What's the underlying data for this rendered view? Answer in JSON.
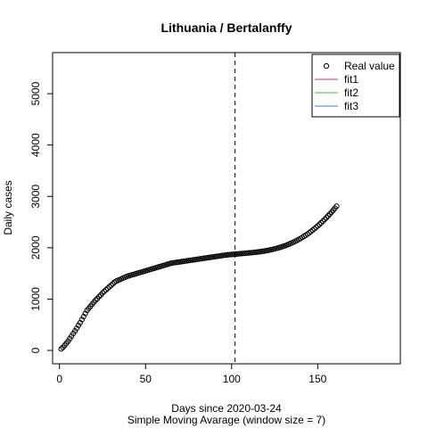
{
  "chart_data": {
    "type": "scatter",
    "title": "Lithuania / Bertalanffy",
    "xlabel": "Days since 2020-03-24",
    "subtitle": "Simple Moving Avarage (window size = 7)",
    "ylabel": "Daily cases",
    "xlim": [
      -4,
      198
    ],
    "ylim": [
      -260,
      5800
    ],
    "xticks": [
      0,
      50,
      100,
      150
    ],
    "yticks": [
      0,
      1000,
      2000,
      3000,
      4000,
      5000
    ],
    "vline_x": 102,
    "grid": false,
    "legend_position": "top-right",
    "legend": [
      {
        "label": "Real value",
        "symbol": "circle",
        "color": "#000000"
      },
      {
        "label": "fit1",
        "symbol": "line",
        "color": "#a0457c"
      },
      {
        "label": "fit2",
        "symbol": "line",
        "color": "#4db34d"
      },
      {
        "label": "fit3",
        "symbol": "line",
        "color": "#3a7ac0"
      }
    ],
    "series": [
      {
        "symbol": "circle",
        "x": [
          1,
          2,
          3,
          4,
          5,
          6,
          7,
          8,
          9,
          10,
          11,
          12,
          13,
          14,
          15,
          16,
          17,
          18,
          19,
          20,
          21,
          22,
          23,
          24,
          25,
          26,
          27,
          28,
          29,
          30,
          31,
          32,
          33,
          34,
          35,
          36,
          37,
          38,
          39,
          40,
          41,
          42,
          43,
          44,
          45,
          46,
          47,
          48,
          49,
          50,
          51,
          52,
          53,
          54,
          55,
          56,
          57,
          58,
          59,
          60,
          61,
          62,
          63,
          64,
          65,
          66,
          67,
          68,
          69,
          70,
          71,
          72,
          73,
          74,
          75,
          76,
          77,
          78,
          79,
          80,
          81,
          82,
          83,
          84,
          85,
          86,
          87,
          88,
          89,
          90,
          91,
          92,
          93,
          94,
          95,
          96,
          97,
          98,
          99,
          100,
          101,
          102,
          103,
          104,
          105,
          106,
          107,
          108,
          109,
          110,
          111,
          112,
          113,
          114,
          115,
          116,
          117,
          118,
          119,
          120,
          121,
          122,
          123,
          124,
          125,
          126,
          127,
          128,
          129,
          130,
          131,
          132,
          133,
          134,
          135,
          136,
          137,
          138,
          139,
          140,
          141,
          142,
          143,
          144,
          145,
          146,
          147,
          148,
          149,
          150,
          151,
          152,
          153,
          154,
          155,
          156,
          157,
          158,
          159,
          160,
          161
        ],
        "y": [
          30,
          60,
          100,
          140,
          180,
          230,
          280,
          330,
          380,
          430,
          490,
          540,
          600,
          660,
          720,
          780,
          820,
          860,
          900,
          940,
          980,
          1010,
          1050,
          1080,
          1120,
          1150,
          1180,
          1210,
          1240,
          1270,
          1300,
          1330,
          1350,
          1365,
          1380,
          1395,
          1410,
          1425,
          1440,
          1450,
          1460,
          1470,
          1480,
          1490,
          1500,
          1510,
          1520,
          1530,
          1540,
          1550,
          1560,
          1570,
          1580,
          1590,
          1600,
          1610,
          1620,
          1630,
          1640,
          1650,
          1660,
          1670,
          1680,
          1690,
          1700,
          1705,
          1710,
          1715,
          1720,
          1725,
          1730,
          1735,
          1740,
          1745,
          1750,
          1755,
          1760,
          1765,
          1770,
          1775,
          1780,
          1785,
          1790,
          1795,
          1800,
          1805,
          1810,
          1815,
          1820,
          1825,
          1830,
          1835,
          1840,
          1845,
          1850,
          1855,
          1860,
          1863,
          1866,
          1869,
          1872,
          1875,
          1878,
          1881,
          1884,
          1887,
          1890,
          1893,
          1896,
          1899,
          1902,
          1905,
          1909,
          1913,
          1917,
          1921,
          1926,
          1931,
          1936,
          1942,
          1948,
          1955,
          1962,
          1970,
          1978,
          1987,
          1996,
          2006,
          2017,
          2028,
          2040,
          2053,
          2066,
          2080,
          2095,
          2110,
          2126,
          2143,
          2161,
          2180,
          2200,
          2221,
          2243,
          2266,
          2290,
          2315,
          2341,
          2368,
          2396,
          2425,
          2455,
          2486,
          2518,
          2551,
          2585,
          2620,
          2656,
          2693,
          2731,
          2770,
          2810
        ]
      }
    ]
  }
}
